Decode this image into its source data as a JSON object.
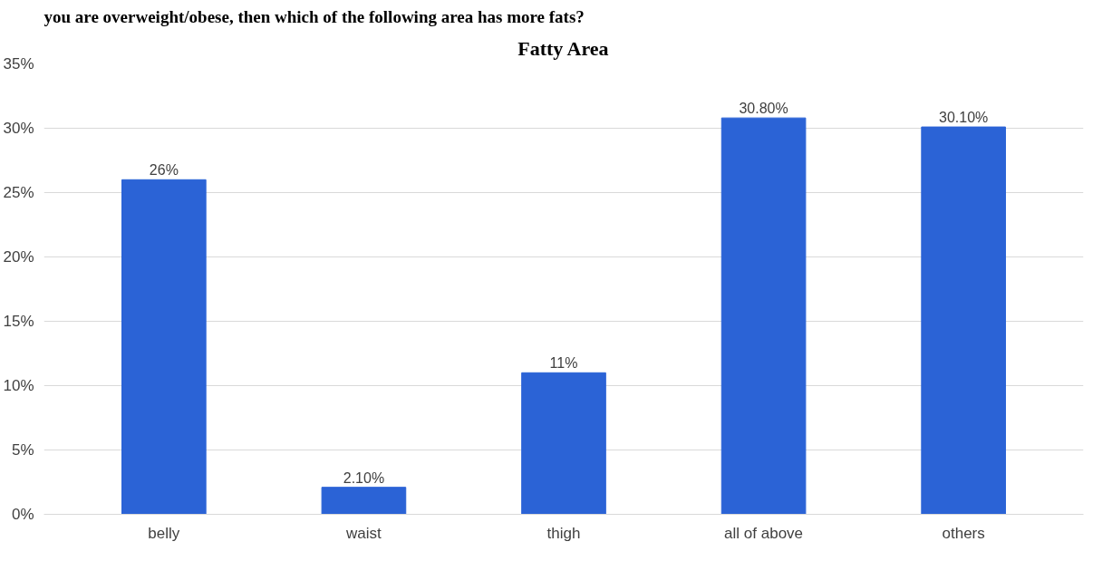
{
  "chart_data": {
    "type": "bar",
    "title": "Fatty Area",
    "annotations": [
      "you are overweight/obese, then which of the following area has more fats?"
    ],
    "categories": [
      "belly",
      "waist",
      "thigh",
      "all of above",
      "others"
    ],
    "values": [
      26,
      2.1,
      11,
      30.8,
      30.1
    ],
    "value_labels": [
      "26%",
      "2.10%",
      "11%",
      "30.80%",
      "30.10%"
    ],
    "color": "#2b63d6",
    "ylim": [
      0,
      35
    ],
    "yticks": [
      {
        "value": 0,
        "label": "0%"
      },
      {
        "value": 5,
        "label": "5%"
      },
      {
        "value": 10,
        "label": "10%"
      },
      {
        "value": 15,
        "label": "15%"
      },
      {
        "value": 20,
        "label": "20%"
      },
      {
        "value": 25,
        "label": "25%"
      },
      {
        "value": 30,
        "label": "30%"
      },
      {
        "value": 35,
        "label": "35%"
      }
    ],
    "grid": "y"
  }
}
